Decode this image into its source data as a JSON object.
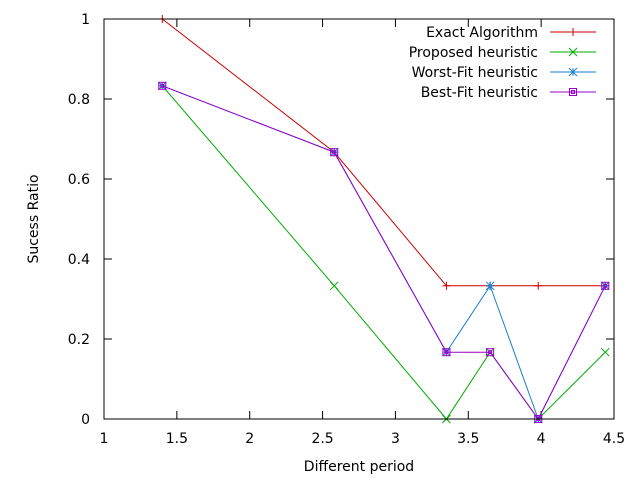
{
  "chart_data": {
    "type": "line",
    "title": "",
    "xlabel": "Different period",
    "ylabel": "Sucess Ratio",
    "xlim": [
      1,
      4.5
    ],
    "ylim": [
      0,
      1
    ],
    "xticks": [
      1,
      1.5,
      2,
      2.5,
      3,
      3.5,
      4,
      4.5
    ],
    "xtick_labels": [
      "1",
      "1.5",
      "2",
      "2.5",
      "3",
      "3.5",
      "4",
      "4.5"
    ],
    "yticks": [
      0,
      0.2,
      0.4,
      0.6,
      0.8,
      1
    ],
    "ytick_labels": [
      "0",
      "0.2",
      "0.4",
      "0.6",
      "0.8",
      "1"
    ],
    "grid": false,
    "legend_position": "top-right",
    "series": [
      {
        "name": "Exact Algorithm",
        "color": "#cc0000",
        "marker": "plus",
        "x": [
          1.4,
          2.58,
          3.35,
          3.65,
          3.98,
          4.44
        ],
        "y": [
          1.0,
          0.667,
          0.333,
          0.333,
          0.333,
          0.333
        ]
      },
      {
        "name": "Proposed heuristic",
        "color": "#00aa00",
        "marker": "cross",
        "x": [
          1.4,
          2.58,
          3.35,
          3.65,
          3.98,
          4.44
        ],
        "y": [
          0.833,
          0.333,
          0.0,
          0.167,
          0.0,
          0.167
        ]
      },
      {
        "name": "Worst-Fit heuristic",
        "color": "#1a7ed0",
        "marker": "star",
        "x": [
          1.4,
          2.58,
          3.35,
          3.65,
          3.98,
          4.44
        ],
        "y": [
          0.833,
          0.667,
          0.167,
          0.333,
          0.0,
          0.333
        ]
      },
      {
        "name": "Best-Fit heuristic",
        "color": "#9900cc",
        "marker": "square",
        "x": [
          1.4,
          2.58,
          3.35,
          3.65,
          3.98,
          4.44
        ],
        "y": [
          0.833,
          0.667,
          0.167,
          0.167,
          0.0,
          0.333
        ]
      }
    ]
  }
}
